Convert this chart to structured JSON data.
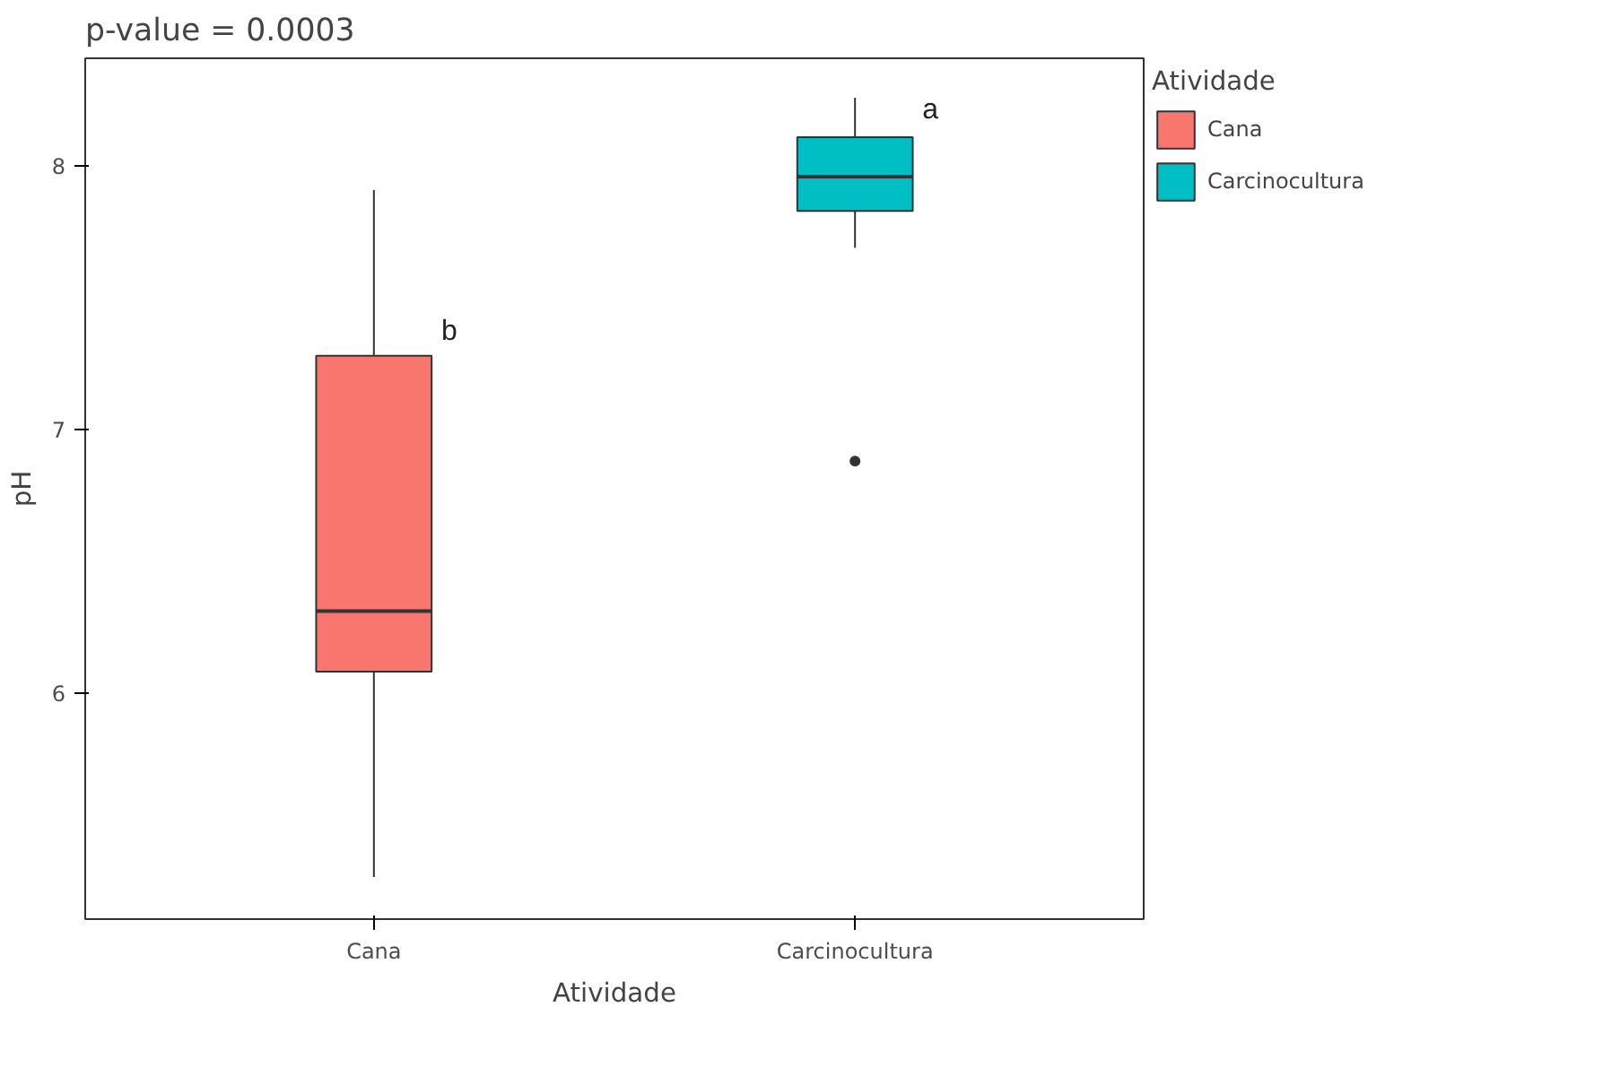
{
  "chart_data": {
    "type": "box",
    "title": "p-value = 0.0003",
    "xlabel": "Atividade",
    "ylabel": "pH",
    "legend_title": "Atividade",
    "categories": [
      "Cana",
      "Carcinocultura"
    ],
    "series": [
      {
        "name": "Cana",
        "color": "#f8766d",
        "boxes": [
          {
            "low": 5.3,
            "q1": 6.08,
            "median": 6.31,
            "q3": 7.28,
            "high": 7.91
          },
          null
        ]
      },
      {
        "name": "Carcinocultura",
        "color": "#00bfc4",
        "boxes": [
          null,
          {
            "low": 7.69,
            "q1": 7.83,
            "median": 7.96,
            "q3": 8.11,
            "high": 8.26,
            "outliers": [
              6.88
            ]
          }
        ]
      }
    ],
    "annotations": [
      {
        "text": "b",
        "x": "Cana",
        "y": 7.3
      },
      {
        "text": "a",
        "x": "Carcinocultura",
        "y": 8.14
      }
    ],
    "ylim": [
      5.14,
      8.41
    ],
    "yticks": [
      6,
      7,
      8
    ],
    "grid": false,
    "legend": "right"
  }
}
